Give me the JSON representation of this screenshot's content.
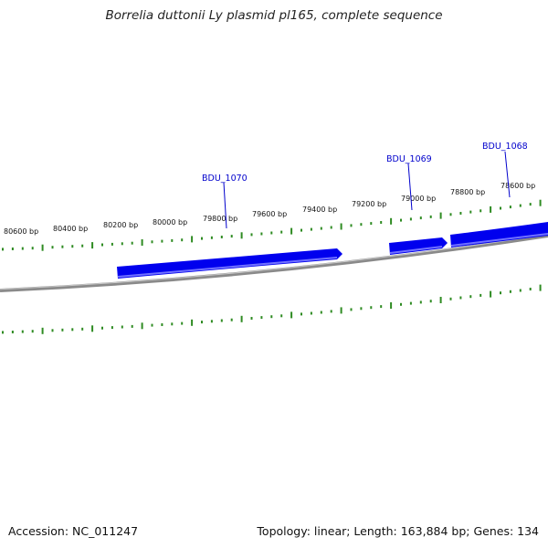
{
  "title": "Borrelia duttonii Ly plasmid pl165, complete sequence",
  "colors": {
    "gene": "#0000ee",
    "gene_edge": "#6a6aff",
    "tick": "#2e8b22",
    "backbone": "#7a7a7a",
    "label": "#0000cc"
  },
  "ruler": {
    "labels": [
      "80600 bp",
      "80400 bp",
      "80200 bp",
      "80000 bp",
      "79800 bp",
      "79600 bp",
      "79400 bp",
      "79200 bp",
      "79000 bp",
      "78800 bp",
      "78600 bp"
    ]
  },
  "genes": [
    {
      "name": "BDU_1070"
    },
    {
      "name": "BDU_1069"
    },
    {
      "name": "BDU_1068"
    }
  ],
  "footer": {
    "accession": "Accession: NC_011247",
    "summary": "Topology: linear; Length: 163,884 bp; Genes: 134"
  }
}
